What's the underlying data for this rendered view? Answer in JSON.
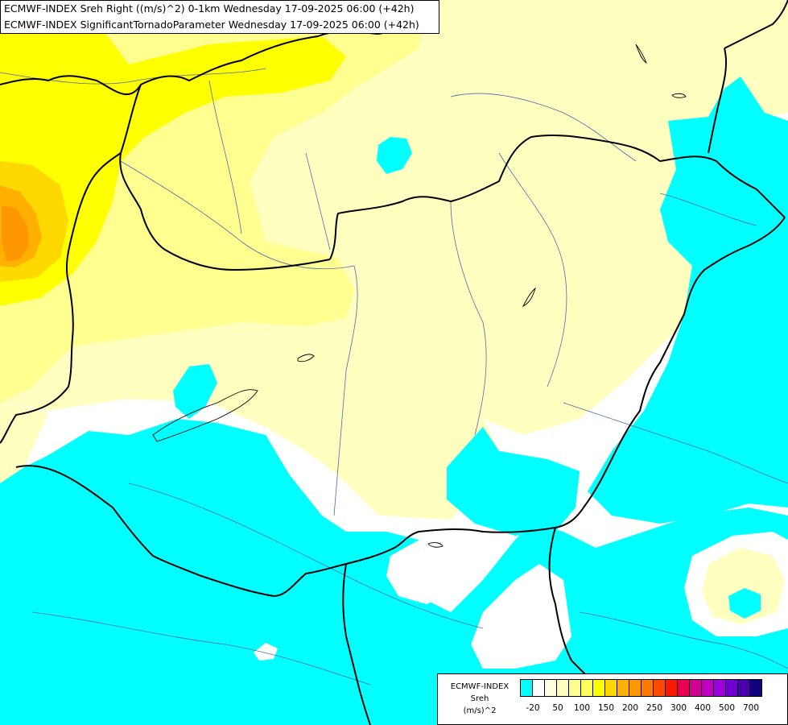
{
  "header": {
    "line1": "ECMWF-INDEX Sreh Right ((m/s)^2) 0-1km Wednesday 17-09-2025 06:00 (+42h)",
    "line2": "ECMWF-INDEX SignificantTornadoParameter Wednesday 17-09-2025 06:00 (+42h)"
  },
  "legend": {
    "title_line1": "ECMWF-INDEX",
    "title_line2": "Sreh",
    "title_line3": "(m/s)^2",
    "swatch_colors": [
      "#00ffff",
      "#ffffff",
      "#ffffe0",
      "#ffffc0",
      "#ffff90",
      "#ffff60",
      "#ffff00",
      "#ffd800",
      "#ffb000",
      "#ff9800",
      "#ff7800",
      "#ff4800",
      "#ff1800",
      "#ea0050",
      "#d00090",
      "#c000c0",
      "#a000e0",
      "#7000d0",
      "#4800b0",
      "#100080"
    ],
    "ticks": [
      "-20",
      "50",
      "100",
      "150",
      "200",
      "250",
      "300",
      "400",
      "500",
      "700"
    ]
  },
  "colors": {
    "cyan": "#00ffff",
    "pale_yellow": "#ffffc0",
    "light_yellow": "#ffff90",
    "yellow": "#ffff00",
    "gold": "#ffd800",
    "orange": "#ffb000",
    "dark_orange": "#ff9800",
    "border": "#000000",
    "river": "#4a6ab0"
  }
}
